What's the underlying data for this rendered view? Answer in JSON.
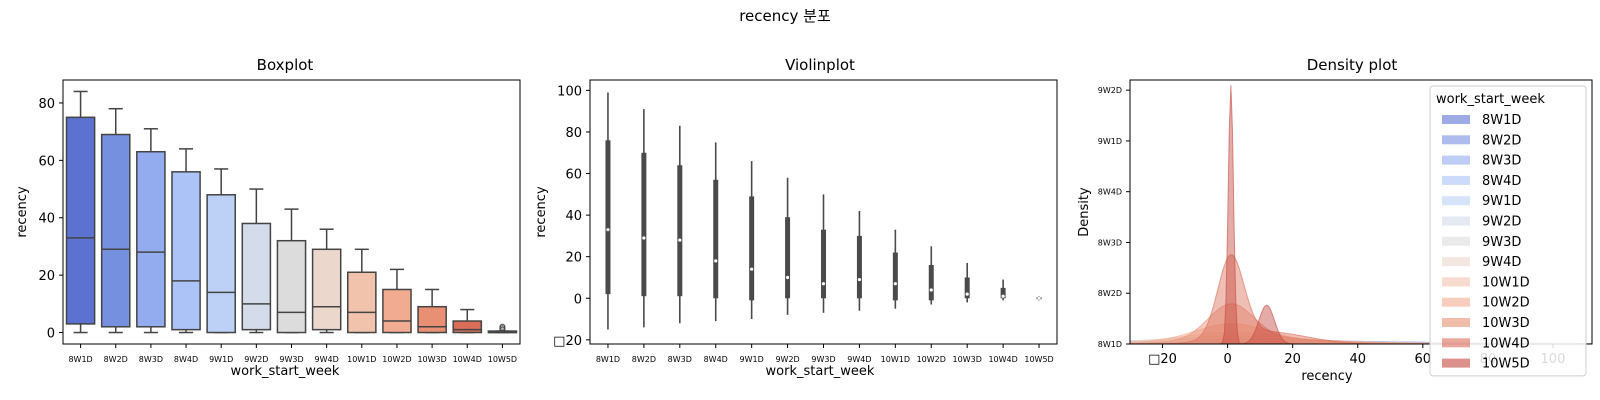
{
  "figure_title": "recency 분포",
  "colors": {
    "axis": "#000000",
    "box_edge": "#444444",
    "violin": "#4a4a4a",
    "palette": [
      "#5b72d0",
      "#7690e0",
      "#93acf0",
      "#acc3f7",
      "#bdd0f5",
      "#d4dbeb",
      "#dcdcdc",
      "#ecd7cd",
      "#f1c3ad",
      "#f1ab91",
      "#e98f73",
      "#db6e58",
      "#c4473d"
    ]
  },
  "chart_data": [
    {
      "type": "box",
      "title": "Boxplot",
      "xlabel": "work_start_week",
      "ylabel": "recency",
      "categories": [
        "8W1D",
        "8W2D",
        "8W3D",
        "8W4D",
        "9W1D",
        "9W2D",
        "9W3D",
        "9W4D",
        "10W1D",
        "10W2D",
        "10W3D",
        "10W4D",
        "10W5D"
      ],
      "ylim": [
        -4,
        88
      ],
      "yticks": [
        0,
        20,
        40,
        60,
        80
      ],
      "boxes": [
        {
          "q1": 3,
          "median": 33,
          "q3": 75,
          "whislo": 0,
          "whishi": 84
        },
        {
          "q1": 2,
          "median": 29,
          "q3": 69,
          "whislo": 0,
          "whishi": 78
        },
        {
          "q1": 2,
          "median": 28,
          "q3": 63,
          "whislo": 0,
          "whishi": 71
        },
        {
          "q1": 1,
          "median": 18,
          "q3": 56,
          "whislo": 0,
          "whishi": 64
        },
        {
          "q1": 0,
          "median": 14,
          "q3": 48,
          "whislo": 0,
          "whishi": 57
        },
        {
          "q1": 1,
          "median": 10,
          "q3": 38,
          "whislo": 0,
          "whishi": 50
        },
        {
          "q1": 0,
          "median": 7,
          "q3": 32,
          "whislo": 0,
          "whishi": 43
        },
        {
          "q1": 1,
          "median": 9,
          "q3": 29,
          "whislo": 0,
          "whishi": 36
        },
        {
          "q1": 0,
          "median": 7,
          "q3": 21,
          "whislo": 0,
          "whishi": 29
        },
        {
          "q1": 0,
          "median": 4,
          "q3": 15,
          "whislo": 0,
          "whishi": 22
        },
        {
          "q1": 0,
          "median": 2,
          "q3": 9,
          "whislo": 0,
          "whishi": 15
        },
        {
          "q1": 0,
          "median": 1,
          "q3": 4,
          "whislo": 0,
          "whishi": 8
        },
        {
          "q1": 0,
          "median": 0,
          "q3": 0.5,
          "whislo": 0,
          "whishi": 0.5,
          "fliers": [
            1,
            1.5,
            2
          ]
        }
      ]
    },
    {
      "type": "violin",
      "title": "Violinplot",
      "xlabel": "work_start_week",
      "ylabel": "recency",
      "categories": [
        "8W1D",
        "8W2D",
        "8W3D",
        "8W4D",
        "9W1D",
        "9W2D",
        "9W3D",
        "9W4D",
        "10W1D",
        "10W2D",
        "10W3D",
        "10W4D",
        "10W5D"
      ],
      "ylim": [
        -22,
        105
      ],
      "yticks": [
        -20,
        0,
        20,
        40,
        60,
        80,
        100
      ],
      "ytick_labels": [
        "□20",
        "0",
        "20",
        "40",
        "60",
        "80",
        "100"
      ],
      "violins": [
        {
          "min": -15,
          "max": 99,
          "q1": 2,
          "median": 33,
          "q3": 76
        },
        {
          "min": -14,
          "max": 91,
          "q1": 1,
          "median": 29,
          "q3": 70
        },
        {
          "min": -12,
          "max": 83,
          "q1": 1,
          "median": 28,
          "q3": 64
        },
        {
          "min": -11,
          "max": 75,
          "q1": 0,
          "median": 18,
          "q3": 57
        },
        {
          "min": -10,
          "max": 66,
          "q1": -1,
          "median": 14,
          "q3": 49
        },
        {
          "min": -8,
          "max": 58,
          "q1": 0,
          "median": 10,
          "q3": 39
        },
        {
          "min": -7,
          "max": 50,
          "q1": 0,
          "median": 7,
          "q3": 33
        },
        {
          "min": -6,
          "max": 42,
          "q1": 0,
          "median": 9,
          "q3": 30
        },
        {
          "min": -5,
          "max": 33,
          "q1": -1,
          "median": 7,
          "q3": 22
        },
        {
          "min": -3,
          "max": 25,
          "q1": -1,
          "median": 4,
          "q3": 16
        },
        {
          "min": -2,
          "max": 17,
          "q1": 0,
          "median": 2,
          "q3": 10
        },
        {
          "min": -1,
          "max": 9,
          "q1": 0,
          "median": 1,
          "q3": 5
        },
        {
          "min": -1,
          "max": 1,
          "q1": -0.5,
          "median": 0,
          "q3": 0.5
        }
      ]
    },
    {
      "type": "area",
      "title": "Density plot",
      "xlabel": "recency",
      "ylabel": "Density",
      "xlim": [
        -30,
        112
      ],
      "xticks": [
        -20,
        0,
        20,
        40,
        60,
        80,
        100
      ],
      "xtick_labels": [
        "□20",
        "0",
        "20",
        "40",
        "60",
        "80",
        "100"
      ],
      "yticks": [
        0,
        1,
        2,
        3,
        4,
        5
      ],
      "ytick_labels": [
        "8W1D",
        "8W2D",
        "8W3D",
        "8W4D",
        "9W1D",
        "9W2D"
      ],
      "ylim": [
        0,
        5.2
      ],
      "legend_title": "work_start_week",
      "legend_placement": "upper right",
      "series": [
        {
          "name": "8W1D",
          "peak": 0.06,
          "spread": 45
        },
        {
          "name": "8W2D",
          "peak": 0.06,
          "spread": 42
        },
        {
          "name": "8W3D",
          "peak": 0.07,
          "spread": 38
        },
        {
          "name": "8W4D",
          "peak": 0.08,
          "spread": 34
        },
        {
          "name": "9W1D",
          "peak": 0.09,
          "spread": 30
        },
        {
          "name": "9W2D",
          "peak": 0.1,
          "spread": 26
        },
        {
          "name": "9W3D",
          "peak": 0.12,
          "spread": 22
        },
        {
          "name": "9W4D",
          "peak": 0.14,
          "spread": 19
        },
        {
          "name": "10W1D",
          "peak": 0.2,
          "spread": 15
        },
        {
          "name": "10W2D",
          "peak": 0.35,
          "spread": 11
        },
        {
          "name": "10W3D",
          "peak": 0.7,
          "spread": 7
        },
        {
          "name": "10W4D",
          "peak": 1.6,
          "spread": 4
        },
        {
          "name": "10W5D",
          "peak": 5.1,
          "spread": 0.8
        }
      ]
    }
  ]
}
